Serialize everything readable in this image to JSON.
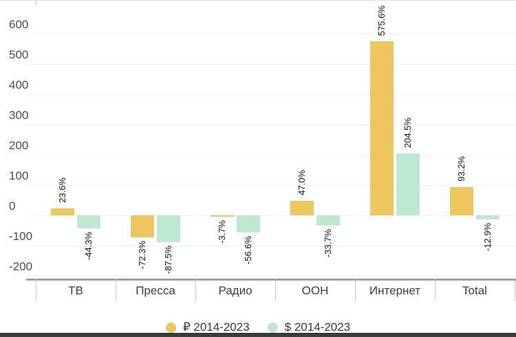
{
  "chart_data": {
    "type": "bar",
    "title": "",
    "categories": [
      "ТВ",
      "Пресса",
      "Радио",
      "OOH",
      "Интернет",
      "Total"
    ],
    "series": [
      {
        "key": "rub",
        "name": "₽ 2014-2023",
        "color": "#EDC660",
        "values": [
          23.6,
          -72.3,
          -3.7,
          47.0,
          575.6,
          93.2
        ],
        "labels": [
          "23.6%",
          "-72.3%",
          "-3.7%",
          "47.0%",
          "575.6%",
          "93.2%"
        ]
      },
      {
        "key": "usd",
        "name": "$ 2014-2023",
        "color": "#BFE8D0",
        "values": [
          -44.3,
          -87.5,
          -56.6,
          -33.7,
          204.5,
          -12.9
        ],
        "labels": [
          "-44.3%",
          "-87.5%",
          "-56.6%",
          "-33.7%",
          "204.5%",
          "-12.9%"
        ]
      }
    ],
    "y_axis": {
      "ticks": [
        600,
        500,
        400,
        300,
        200,
        100,
        0,
        -100,
        -200
      ],
      "min": -200,
      "max": 650
    },
    "xlabel": "",
    "ylabel": "",
    "grid": true,
    "legend_position": "bottom",
    "value_suffix": "%"
  },
  "colors": {
    "gridline": "#f0f0f0",
    "axis_line": "#9e9e9e",
    "category_tick": "#c9c9c9",
    "y_label": "#4d4d4d",
    "category_label": "#3d3d3d",
    "value_label": "#141414",
    "legend_text": "#3a3a3a",
    "bottom_edge": "#3c3c3c"
  }
}
